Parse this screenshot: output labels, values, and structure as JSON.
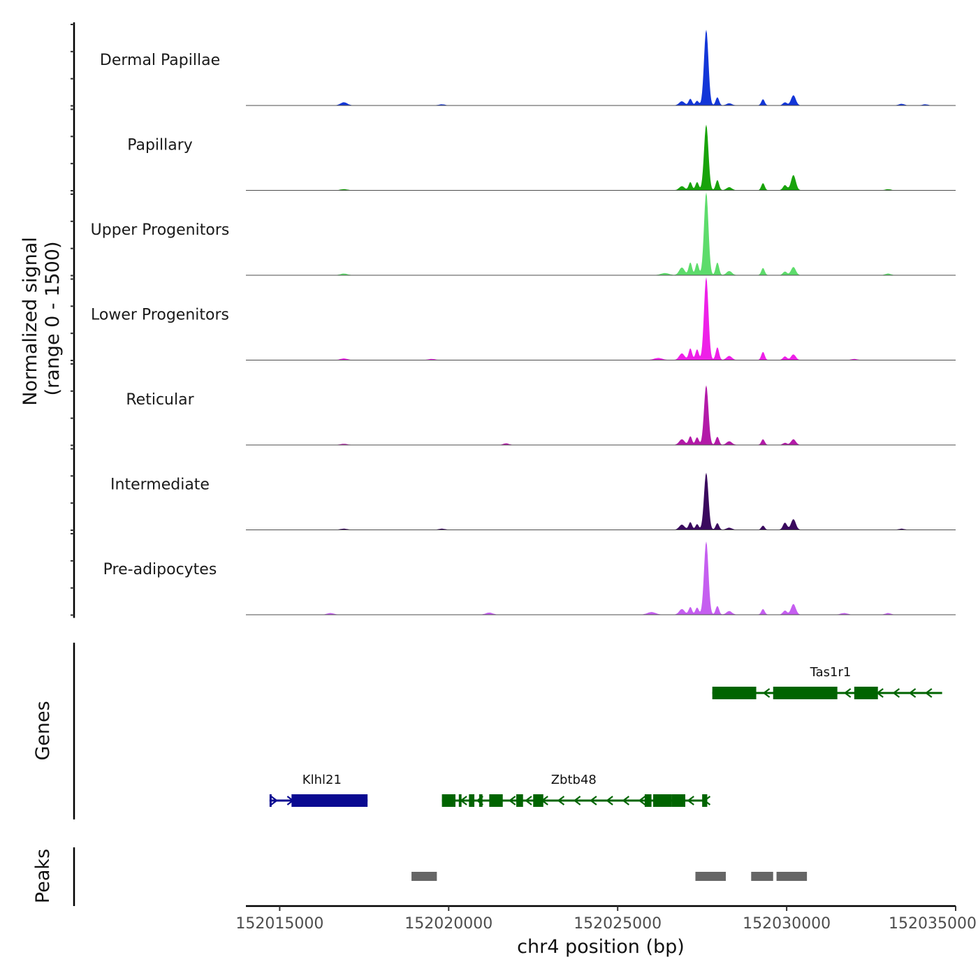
{
  "chart_data": {
    "type": "area",
    "title": "",
    "xlabel": "chr4 position (bp)",
    "ylabel_line1": "Normalized signal",
    "ylabel_line2": "(range 0 - 1500)",
    "x_range": [
      152014000,
      152035000
    ],
    "x_ticks": [
      152015000,
      152020000,
      152025000,
      152030000,
      152035000
    ],
    "x_tick_labels": [
      "152015000",
      "152020000",
      "152025000",
      "152030000",
      "152035000"
    ],
    "y_range": [
      0,
      1500
    ],
    "tracks": [
      {
        "name": "Dermal Papillae",
        "color": "#1336d8",
        "peaks": [
          [
            152016900,
            60,
            100
          ],
          [
            152019800,
            20,
            90
          ],
          [
            152026900,
            80,
            80
          ],
          [
            152027150,
            130,
            50
          ],
          [
            152027350,
            90,
            50
          ],
          [
            152027620,
            1500,
            65
          ],
          [
            152027950,
            160,
            50
          ],
          [
            152028300,
            40,
            80
          ],
          [
            152029300,
            120,
            50
          ],
          [
            152029950,
            60,
            60
          ],
          [
            152030200,
            200,
            70
          ],
          [
            152033400,
            30,
            80
          ],
          [
            152034100,
            20,
            80
          ]
        ]
      },
      {
        "name": "Papillary",
        "color": "#18a30b",
        "peaks": [
          [
            152016900,
            20,
            100
          ],
          [
            152026900,
            80,
            80
          ],
          [
            152027150,
            160,
            50
          ],
          [
            152027350,
            160,
            50
          ],
          [
            152027620,
            1300,
            65
          ],
          [
            152027950,
            200,
            50
          ],
          [
            152028300,
            60,
            80
          ],
          [
            152029300,
            140,
            50
          ],
          [
            152029950,
            100,
            60
          ],
          [
            152030200,
            300,
            70
          ],
          [
            152033000,
            20,
            80
          ]
        ]
      },
      {
        "name": "Upper Progenitors",
        "color": "#5ddc6b",
        "peaks": [
          [
            152016900,
            30,
            100
          ],
          [
            152026400,
            40,
            120
          ],
          [
            152026900,
            150,
            80
          ],
          [
            152027150,
            250,
            50
          ],
          [
            152027350,
            240,
            50
          ],
          [
            152027620,
            1640,
            65
          ],
          [
            152027950,
            250,
            50
          ],
          [
            152028300,
            80,
            80
          ],
          [
            152029300,
            140,
            50
          ],
          [
            152029950,
            70,
            60
          ],
          [
            152030200,
            160,
            70
          ],
          [
            152033000,
            30,
            80
          ]
        ]
      },
      {
        "name": "Lower Progenitors",
        "color": "#ee20e8",
        "peaks": [
          [
            152016900,
            30,
            100
          ],
          [
            152019500,
            20,
            100
          ],
          [
            152026200,
            40,
            120
          ],
          [
            152026900,
            130,
            80
          ],
          [
            152027150,
            230,
            50
          ],
          [
            152027350,
            210,
            50
          ],
          [
            152027620,
            1640,
            65
          ],
          [
            152027950,
            250,
            50
          ],
          [
            152028300,
            80,
            80
          ],
          [
            152029300,
            160,
            50
          ],
          [
            152029950,
            70,
            60
          ],
          [
            152030200,
            110,
            70
          ],
          [
            152032000,
            20,
            80
          ]
        ]
      },
      {
        "name": "Reticular",
        "color": "#b31aa8",
        "peaks": [
          [
            152016900,
            20,
            100
          ],
          [
            152021700,
            30,
            80
          ],
          [
            152026900,
            110,
            80
          ],
          [
            152027150,
            170,
            50
          ],
          [
            152027350,
            150,
            50
          ],
          [
            152027620,
            1180,
            65
          ],
          [
            152027950,
            160,
            50
          ],
          [
            152028300,
            70,
            80
          ],
          [
            152029300,
            110,
            50
          ],
          [
            152029950,
            40,
            60
          ],
          [
            152030200,
            110,
            70
          ]
        ]
      },
      {
        "name": "Intermediate",
        "color": "#3a0a5e",
        "peaks": [
          [
            152016900,
            20,
            100
          ],
          [
            152019800,
            20,
            90
          ],
          [
            152026900,
            100,
            80
          ],
          [
            152027150,
            150,
            50
          ],
          [
            152027350,
            110,
            50
          ],
          [
            152027620,
            1130,
            65
          ],
          [
            152027950,
            130,
            50
          ],
          [
            152028300,
            40,
            80
          ],
          [
            152029300,
            80,
            50
          ],
          [
            152029950,
            140,
            60
          ],
          [
            152030200,
            210,
            70
          ],
          [
            152033400,
            20,
            80
          ]
        ]
      },
      {
        "name": "Pre-adipocytes",
        "color": "#c55ef0",
        "peaks": [
          [
            152016500,
            30,
            100
          ],
          [
            152021200,
            40,
            100
          ],
          [
            152026000,
            50,
            120
          ],
          [
            152026900,
            110,
            80
          ],
          [
            152027150,
            150,
            50
          ],
          [
            152027350,
            140,
            50
          ],
          [
            152027620,
            1450,
            65
          ],
          [
            152027950,
            170,
            50
          ],
          [
            152028300,
            70,
            80
          ],
          [
            152029300,
            110,
            50
          ],
          [
            152029950,
            80,
            60
          ],
          [
            152030200,
            210,
            70
          ],
          [
            152031700,
            30,
            100
          ],
          [
            152033000,
            30,
            80
          ]
        ]
      }
    ],
    "genes": [
      {
        "name": "Klhl21",
        "color": "#0a0a91",
        "strand": "+",
        "row": 2,
        "start": 152014700,
        "end": 152017600,
        "exons": [
          [
            152014700,
            152014760
          ],
          [
            152015350,
            152017600
          ]
        ]
      },
      {
        "name": "Zbtb48",
        "color": "#006400",
        "strand": "-",
        "row": 2,
        "start": 152019800,
        "end": 152027650,
        "exons": [
          [
            152019800,
            152020200
          ],
          [
            152020300,
            152020380
          ],
          [
            152020600,
            152020760
          ],
          [
            152020900,
            152021000
          ],
          [
            152021200,
            152021600
          ],
          [
            152022000,
            152022200
          ],
          [
            152022500,
            152022800
          ],
          [
            152025800,
            152026000
          ],
          [
            152026050,
            152026600
          ],
          [
            152026600,
            152027000
          ],
          [
            152027500,
            152027650
          ]
        ]
      },
      {
        "name": "Tas1r1",
        "color": "#006400",
        "strand": "-",
        "row": 1,
        "start": 152027800,
        "end": 152034600,
        "exons": [
          [
            152027800,
            152029100
          ],
          [
            152029600,
            152031500
          ],
          [
            152032000,
            152032700
          ]
        ]
      }
    ],
    "peaks_label": "Peaks",
    "genes_label": "Genes",
    "peak_regions": [
      [
        152018900,
        152019650
      ],
      [
        152027300,
        152028200
      ],
      [
        152028950,
        152029600
      ],
      [
        152029700,
        152030600
      ]
    ]
  }
}
